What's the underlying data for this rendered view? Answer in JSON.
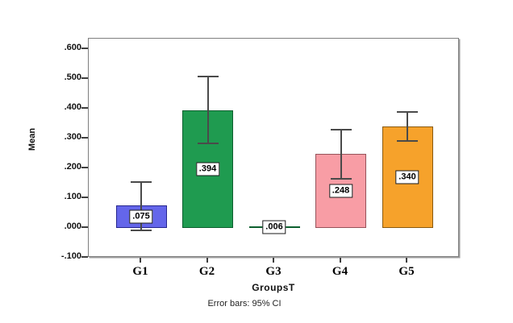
{
  "chart_data": {
    "type": "bar",
    "title": "",
    "xlabel": "GroupsT",
    "ylabel": "Mean",
    "caption": "Error bars: 95% CI",
    "categories": [
      "G1",
      "G2",
      "G3",
      "G4",
      "G5"
    ],
    "values": [
      0.075,
      0.394,
      0.006,
      0.248,
      0.34
    ],
    "value_labels": [
      ".075",
      ".394",
      ".006",
      ".248",
      ".340"
    ],
    "error_bars": {
      "label": "95% CI",
      "low": [
        -0.007,
        0.283,
        -0.001,
        0.165,
        0.292
      ],
      "high": [
        0.155,
        0.508,
        0.013,
        0.331,
        0.389
      ]
    },
    "bar_colors": [
      "#6466ea",
      "#1f9b50",
      "#2fa65c",
      "#f89da5",
      "#f6a22b"
    ],
    "bar_border_colors": [
      "#26268e",
      "#0c5f2e",
      "#0c5f2e",
      "#96535a",
      "#8a5a10"
    ],
    "error_bar_color": "#4a4a4a",
    "frame_color": "#7f7f7f",
    "ylim": [
      -0.1,
      0.635
    ],
    "yticks": [
      {
        "value": 0.6,
        "label": ".600"
      },
      {
        "value": 0.5,
        "label": ".500"
      },
      {
        "value": 0.4,
        "label": ".400"
      },
      {
        "value": 0.3,
        "label": ".300"
      },
      {
        "value": 0.2,
        "label": ".200"
      },
      {
        "value": 0.1,
        "label": ".100"
      },
      {
        "value": 0.0,
        "label": ".000"
      },
      {
        "value": -0.1,
        "label": "-.100"
      }
    ],
    "grid": false,
    "legend": null
  }
}
